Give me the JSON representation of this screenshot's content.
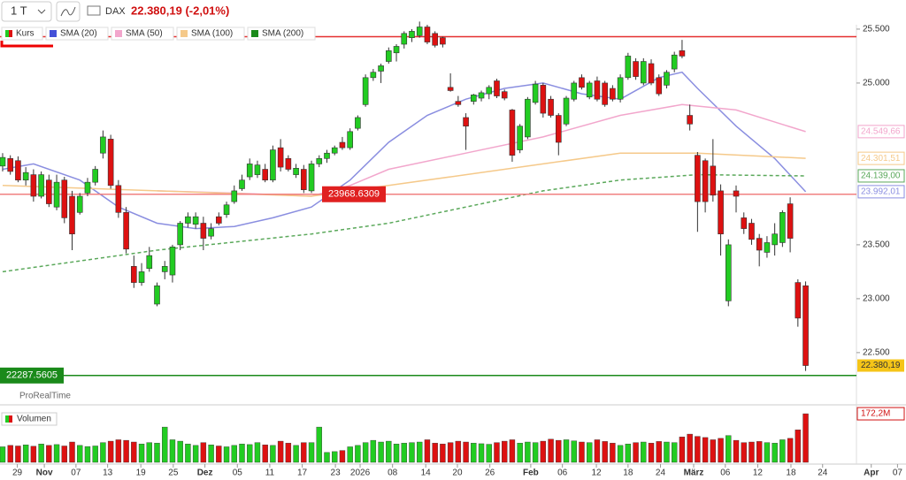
{
  "header": {
    "interval": "1 T",
    "symbol": "DAX",
    "quote": "22.380,19 (-2,01%)",
    "brand": "ProRealTime"
  },
  "chart_data": {
    "type": "candlestick",
    "legend": [
      "Kurs",
      "SMA (20)",
      "SMA (50)",
      "SMA (100)",
      "SMA (200)"
    ],
    "ohlc": [
      [
        24230,
        24350,
        24180,
        24310
      ],
      [
        24300,
        24330,
        24150,
        24180
      ],
      [
        24280,
        24320,
        24080,
        24100
      ],
      [
        24100,
        24220,
        24050,
        24170
      ],
      [
        24150,
        24200,
        23900,
        23950
      ],
      [
        23950,
        24180,
        23930,
        24150
      ],
      [
        24100,
        24150,
        23850,
        23880
      ],
      [
        23850,
        24150,
        23820,
        24080
      ],
      [
        24100,
        24130,
        23700,
        23750
      ],
      [
        23950,
        24000,
        23450,
        23600
      ],
      [
        23800,
        23980,
        23780,
        23950
      ],
      [
        23980,
        24120,
        23950,
        24080
      ],
      [
        24080,
        24230,
        24050,
        24200
      ],
      [
        24350,
        24560,
        24300,
        24500
      ],
      [
        24480,
        24520,
        24020,
        24050
      ],
      [
        24050,
        24100,
        23750,
        23800
      ],
      [
        23800,
        23850,
        23420,
        23460
      ],
      [
        23300,
        23400,
        23100,
        23150
      ],
      [
        23150,
        23330,
        23120,
        23250
      ],
      [
        23280,
        23480,
        23250,
        23400
      ],
      [
        22950,
        23150,
        22930,
        23120
      ],
      [
        23250,
        23350,
        23180,
        23300
      ],
      [
        23220,
        23500,
        23150,
        23480
      ],
      [
        23500,
        23720,
        23450,
        23700
      ],
      [
        23700,
        23800,
        23660,
        23760
      ],
      [
        23690,
        23800,
        23650,
        23760
      ],
      [
        23700,
        23760,
        23450,
        23560
      ],
      [
        23580,
        23700,
        23550,
        23650
      ],
      [
        23760,
        23800,
        23680,
        23700
      ],
      [
        23780,
        23900,
        23750,
        23870
      ],
      [
        23900,
        24050,
        23880,
        24000
      ],
      [
        24020,
        24150,
        24000,
        24100
      ],
      [
        24130,
        24300,
        24100,
        24250
      ],
      [
        24150,
        24280,
        24120,
        24240
      ],
      [
        24200,
        24250,
        24080,
        24100
      ],
      [
        24100,
        24420,
        24080,
        24380
      ],
      [
        24400,
        24480,
        24180,
        24220
      ],
      [
        24300,
        24330,
        24180,
        24200
      ],
      [
        24150,
        24250,
        24120,
        24210
      ],
      [
        24200,
        24240,
        23980,
        24010
      ],
      [
        24000,
        24280,
        23980,
        24250
      ],
      [
        24250,
        24330,
        24220,
        24300
      ],
      [
        24300,
        24380,
        24260,
        24350
      ],
      [
        24350,
        24420,
        24330,
        24400
      ],
      [
        24450,
        24500,
        24380,
        24400
      ],
      [
        24400,
        24580,
        24380,
        24550
      ],
      [
        24580,
        24700,
        24560,
        24680
      ],
      [
        24800,
        25080,
        24780,
        25050
      ],
      [
        25050,
        25130,
        25020,
        25100
      ],
      [
        25110,
        25180,
        25000,
        25160
      ],
      [
        25200,
        25330,
        25180,
        25300
      ],
      [
        25280,
        25360,
        25200,
        25340
      ],
      [
        25360,
        25480,
        25320,
        25460
      ],
      [
        25420,
        25500,
        25380,
        25480
      ],
      [
        25440,
        25570,
        25420,
        25520
      ],
      [
        25520,
        25540,
        25360,
        25380
      ],
      [
        25460,
        25480,
        25330,
        25350
      ],
      [
        25420,
        25430,
        25330,
        25360
      ],
      [
        24960,
        25090,
        24920,
        24930
      ],
      [
        24830,
        24880,
        24780,
        24800
      ],
      [
        24680,
        24720,
        24380,
        24600
      ],
      [
        24830,
        24900,
        24800,
        24890
      ],
      [
        24860,
        24930,
        24830,
        24910
      ],
      [
        24900,
        24980,
        24850,
        24960
      ],
      [
        25020,
        25040,
        24860,
        24880
      ],
      [
        24920,
        24940,
        24840,
        24860
      ],
      [
        24750,
        24760,
        24270,
        24330
      ],
      [
        24380,
        24620,
        24350,
        24600
      ],
      [
        24500,
        24870,
        24480,
        24850
      ],
      [
        24820,
        25020,
        24800,
        24990
      ],
      [
        24980,
        25000,
        24680,
        24720
      ],
      [
        24850,
        24880,
        24680,
        24700
      ],
      [
        24700,
        24720,
        24330,
        24450
      ],
      [
        24620,
        24880,
        24600,
        24860
      ],
      [
        24850,
        25020,
        24830,
        25000
      ],
      [
        25050,
        25080,
        24940,
        24960
      ],
      [
        24870,
        25020,
        24850,
        25000
      ],
      [
        25020,
        25060,
        24830,
        24850
      ],
      [
        25000,
        25020,
        24780,
        24800
      ],
      [
        24950,
        24980,
        24830,
        24850
      ],
      [
        24850,
        25080,
        24820,
        25050
      ],
      [
        25050,
        25280,
        25030,
        25250
      ],
      [
        25200,
        25230,
        25030,
        25060
      ],
      [
        25000,
        25230,
        24980,
        25200
      ],
      [
        25180,
        25220,
        24980,
        25000
      ],
      [
        25050,
        25080,
        24880,
        24900
      ],
      [
        24980,
        25120,
        24950,
        25100
      ],
      [
        25130,
        25290,
        25100,
        25260
      ],
      [
        25300,
        25400,
        25230,
        25250
      ],
      [
        24700,
        24800,
        24560,
        24620
      ],
      [
        24330,
        24360,
        23620,
        23900
      ],
      [
        24280,
        24300,
        23800,
        23900
      ],
      [
        24230,
        24480,
        23900,
        23960
      ],
      [
        24000,
        24060,
        23400,
        23600
      ],
      [
        22980,
        23550,
        22930,
        23500
      ],
      [
        24000,
        24050,
        23800,
        23950
      ],
      [
        23750,
        23800,
        23600,
        23650
      ],
      [
        23700,
        23740,
        23500,
        23550
      ],
      [
        23560,
        23600,
        23300,
        23450
      ],
      [
        23430,
        23580,
        23380,
        23520
      ],
      [
        23500,
        23700,
        23400,
        23600
      ],
      [
        23520,
        23820,
        23480,
        23800
      ],
      [
        23880,
        23940,
        23430,
        23560
      ],
      [
        23150,
        23180,
        22740,
        22820
      ],
      [
        23120,
        23160,
        22330,
        22380
      ]
    ],
    "close_label": "22.380,19",
    "up_color": "#22cc22",
    "down_color": "#dd1111",
    "series": [
      {
        "name": "SMA (20)",
        "color": "#8a8ee0",
        "x": [
          0,
          4,
          10,
          15,
          20,
          25,
          30,
          35,
          40,
          45,
          50,
          55,
          60,
          65,
          70,
          75,
          80,
          85,
          88,
          90,
          95,
          100,
          104
        ],
        "values": [
          24200,
          24250,
          24100,
          23850,
          23700,
          23650,
          23670,
          23750,
          23850,
          24100,
          24450,
          24700,
          24850,
          24950,
          25000,
          24900,
          24850,
          25050,
          25100,
          24950,
          24600,
          24300,
          23992.01
        ],
        "last_label": "23.992,01",
        "dash": false
      },
      {
        "name": "SMA (50)",
        "color": "#f2a6cc",
        "x": [
          20,
          30,
          40,
          45,
          50,
          60,
          70,
          80,
          88,
          95,
          104
        ],
        "values": [
          24000,
          23980,
          23950,
          24050,
          24200,
          24350,
          24500,
          24700,
          24800,
          24750,
          24549.66
        ],
        "last_label": "24.549,66",
        "dash": false
      },
      {
        "name": "SMA (100)",
        "color": "#f5c98a",
        "x": [
          0,
          20,
          40,
          50,
          60,
          70,
          80,
          90,
          104
        ],
        "values": [
          24050,
          24000,
          23950,
          24050,
          24150,
          24250,
          24350,
          24350,
          24301.51
        ],
        "last_label": "24.301,51",
        "dash": false
      },
      {
        "name": "SMA (200)",
        "color": "#5aa85a",
        "x": [
          0,
          20,
          40,
          50,
          60,
          70,
          80,
          90,
          104
        ],
        "values": [
          23250,
          23450,
          23600,
          23700,
          23850,
          24000,
          24100,
          24150,
          24139
        ],
        "last_label": "24.139,00",
        "dash": true
      }
    ],
    "lines": [
      {
        "value": 25430,
        "color": "#e53030"
      },
      {
        "value": 23968.6309,
        "label": "23968.6309",
        "color": "#f08080"
      },
      {
        "value": 22287.5605,
        "label": "22287.5605",
        "color": "#1a8a1a"
      }
    ],
    "ylim": [
      22040,
      25770
    ],
    "yticks": [
      {
        "value": 25500,
        "label": "25.500"
      },
      {
        "value": 25000,
        "label": "25.000"
      },
      {
        "value": 23500,
        "label": "23.500"
      },
      {
        "value": 23000,
        "label": "23.000"
      },
      {
        "value": 22500,
        "label": "22.500"
      }
    ],
    "xlim": [
      -0.34,
      117
    ],
    "xticks": [
      {
        "value": 1.9,
        "label": "29"
      },
      {
        "value": 5.4,
        "label": "Nov"
      },
      {
        "value": 9.5,
        "label": "07"
      },
      {
        "value": 13.6,
        "label": "13"
      },
      {
        "value": 17.9,
        "label": "19"
      },
      {
        "value": 22.1,
        "label": "25"
      },
      {
        "value": 26.2,
        "label": "Dez"
      },
      {
        "value": 30.4,
        "label": "05"
      },
      {
        "value": 34.6,
        "label": "11"
      },
      {
        "value": 38.8,
        "label": "17"
      },
      {
        "value": 43.1,
        "label": "23"
      },
      {
        "value": 46.3,
        "label": "2026"
      },
      {
        "value": 50.5,
        "label": "08"
      },
      {
        "value": 54.8,
        "label": "14"
      },
      {
        "value": 58.9,
        "label": "20"
      },
      {
        "value": 63.1,
        "label": "26"
      },
      {
        "value": 68.4,
        "label": "Feb"
      },
      {
        "value": 72.5,
        "label": "06"
      },
      {
        "value": 76.9,
        "label": "12"
      },
      {
        "value": 81,
        "label": "18"
      },
      {
        "value": 85.2,
        "label": "24"
      },
      {
        "value": 89.5,
        "label": "März"
      },
      {
        "value": 93.6,
        "label": "06"
      },
      {
        "value": 97.8,
        "label": "12"
      },
      {
        "value": 102.1,
        "label": "18"
      },
      {
        "value": 106.2,
        "label": "24"
      },
      {
        "value": 112.5,
        "label": "Apr"
      },
      {
        "value": 115.9,
        "label": "07"
      }
    ],
    "volume": {
      "name": "Volumen",
      "values": [
        55,
        60,
        58,
        62,
        57,
        65,
        60,
        63,
        58,
        72,
        60,
        56,
        58,
        70,
        75,
        80,
        78,
        72,
        65,
        70,
        68,
        125,
        80,
        75,
        65,
        60,
        70,
        62,
        58,
        55,
        60,
        65,
        63,
        70,
        62,
        60,
        75,
        68,
        60,
        70,
        70,
        125,
        35,
        38,
        42,
        55,
        60,
        70,
        78,
        72,
        75,
        65,
        68,
        70,
        72,
        80,
        68,
        65,
        70,
        75,
        72,
        68,
        66,
        64,
        70,
        75,
        80,
        68,
        72,
        70,
        75,
        82,
        78,
        80,
        76,
        72,
        70,
        80,
        74,
        68,
        60,
        65,
        70,
        72,
        68,
        74,
        72,
        70,
        90,
        100,
        92,
        88,
        80,
        85,
        95,
        78,
        70,
        72,
        74,
        70,
        68,
        80,
        85,
        115,
        172.2
      ],
      "last_label": "172,2M",
      "ylim": [
        0,
        188
      ]
    }
  }
}
